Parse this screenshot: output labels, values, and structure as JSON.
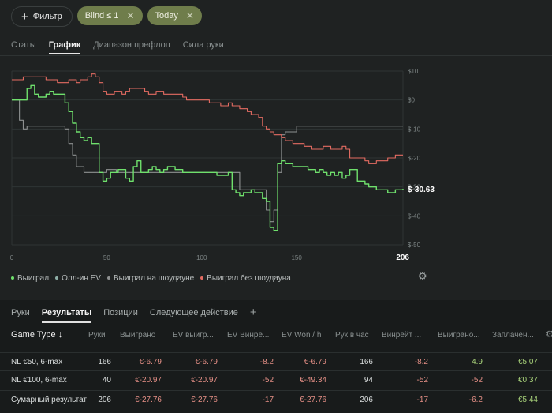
{
  "filters": {
    "add_label": "Фильтр",
    "chips": [
      {
        "label": "Blind ≤ 1"
      },
      {
        "label": "Today"
      }
    ]
  },
  "tabs": [
    "Статы",
    "График",
    "Диапазон префлоп",
    "Сила руки"
  ],
  "active_tab": "График",
  "chart_data": {
    "type": "line",
    "x_ticks": [
      "0",
      "50",
      "100",
      "150",
      "206"
    ],
    "y_ticks": [
      "$10",
      "$0",
      "$-10",
      "$-20",
      "$-30",
      "$-40",
      "$-50"
    ],
    "xlim": [
      0,
      206
    ],
    "ylim": [
      -50,
      10
    ],
    "end_label": "$-30.63",
    "series": [
      {
        "name": "Выиграл",
        "color": "#6fe06c",
        "x": [
          0,
          2,
          4,
          6,
          8,
          10,
          12,
          14,
          16,
          18,
          20,
          22,
          24,
          26,
          28,
          30,
          32,
          34,
          36,
          38,
          40,
          42,
          44,
          46,
          48,
          50,
          52,
          54,
          56,
          58,
          60,
          62,
          64,
          66,
          68,
          70,
          72,
          74,
          76,
          78,
          80,
          82,
          84,
          86,
          88,
          90,
          92,
          94,
          96,
          98,
          100,
          102,
          104,
          106,
          108,
          110,
          112,
          114,
          116,
          118,
          120,
          122,
          124,
          126,
          128,
          130,
          132,
          134,
          136,
          138,
          140,
          142,
          144,
          146,
          148,
          150,
          152,
          154,
          156,
          158,
          160,
          162,
          164,
          166,
          168,
          170,
          172,
          174,
          176,
          178,
          180,
          182,
          184,
          186,
          188,
          190,
          192,
          194,
          196,
          198,
          200,
          202,
          204,
          206
        ],
        "y": [
          0,
          0,
          0,
          0,
          4,
          5,
          2,
          1,
          1,
          2,
          3,
          2,
          2,
          2,
          -1,
          -4,
          -8,
          -11,
          -13,
          -14,
          -13,
          -15,
          -15,
          -25,
          -28,
          -27,
          -25,
          -25,
          -24,
          -24,
          -27,
          -28,
          -23,
          -21,
          -25,
          -25,
          -24,
          -23,
          -24,
          -25,
          -24,
          -23,
          -23,
          -24,
          -24,
          -25,
          -25,
          -25,
          -25,
          -25,
          -25,
          -25,
          -25,
          -25,
          -26,
          -26,
          -26,
          -25,
          -31,
          -32,
          -33,
          -32,
          -32,
          -31,
          -32,
          -32,
          -34,
          -35,
          -44,
          -45,
          -22,
          -21,
          -22,
          -22,
          -23,
          -23,
          -23,
          -23,
          -24,
          -24,
          -25,
          -24,
          -25,
          -26,
          -25,
          -26,
          -25,
          -27,
          -26,
          -24,
          -24,
          -28,
          -28,
          -29,
          -30,
          -30,
          -31,
          -31,
          -31,
          -32,
          -32,
          -31,
          -31,
          -30.63
        ]
      },
      {
        "name": "Олл-ин EV",
        "color": "#8fb0a8",
        "x": [
          0,
          206
        ],
        "y": [
          0,
          -30.63
        ]
      },
      {
        "name": "Выиграл на шоудауне",
        "color": "#8e9191",
        "x": [
          0,
          1,
          2,
          3,
          4,
          6,
          8,
          10,
          12,
          14,
          16,
          18,
          20,
          22,
          24,
          26,
          28,
          30,
          32,
          34,
          36,
          38,
          40,
          42,
          44,
          46,
          48,
          50,
          55,
          60,
          65,
          70,
          75,
          80,
          85,
          90,
          95,
          100,
          105,
          110,
          115,
          120,
          125,
          128,
          130,
          132,
          134,
          136,
          138,
          140,
          142,
          144,
          146,
          148,
          150,
          155,
          160,
          165,
          170,
          175,
          180,
          185,
          190,
          195,
          200,
          206
        ],
        "y": [
          0,
          0,
          0,
          0,
          -7,
          -10,
          -9,
          -9,
          -9,
          -9,
          -9,
          -9,
          -9,
          -9,
          -9,
          -9,
          -10,
          -15,
          -19,
          -23,
          -23,
          -25,
          -25,
          -25,
          -25,
          -25,
          -25,
          -24,
          -25,
          -25,
          -25,
          -25,
          -25,
          -25,
          -25,
          -25,
          -25,
          -25,
          -25,
          -25,
          -25,
          -31,
          -31,
          -31,
          -31,
          -31,
          -38,
          -42,
          -38,
          -25,
          -12,
          -11,
          -11,
          -11,
          -9,
          -9,
          -9,
          -9,
          -9,
          -9,
          -9,
          -9,
          -9,
          -9,
          -9,
          -9
        ]
      },
      {
        "name": "Выиграл без шоудауна",
        "color": "#e56c62",
        "x": [
          0,
          2,
          4,
          6,
          8,
          10,
          12,
          14,
          16,
          18,
          20,
          22,
          24,
          26,
          28,
          30,
          32,
          34,
          36,
          38,
          40,
          42,
          44,
          46,
          48,
          50,
          52,
          54,
          56,
          58,
          60,
          62,
          64,
          66,
          68,
          70,
          72,
          74,
          76,
          78,
          80,
          82,
          84,
          86,
          88,
          90,
          92,
          94,
          96,
          98,
          100,
          102,
          104,
          106,
          108,
          110,
          112,
          114,
          116,
          118,
          120,
          122,
          124,
          126,
          128,
          130,
          132,
          134,
          136,
          138,
          140,
          142,
          144,
          146,
          148,
          150,
          152,
          154,
          156,
          158,
          160,
          162,
          164,
          166,
          168,
          170,
          172,
          174,
          176,
          178,
          180,
          182,
          184,
          186,
          188,
          190,
          192,
          194,
          196,
          198,
          200,
          202,
          204,
          206
        ],
        "y": [
          7,
          7,
          7,
          8,
          8,
          8,
          8,
          8,
          8,
          7,
          7,
          7,
          6,
          6,
          6,
          7,
          7,
          6,
          7,
          7,
          8,
          9,
          8,
          6,
          3,
          2,
          2,
          3,
          3,
          2,
          3,
          4,
          4,
          4,
          4,
          3,
          2,
          2,
          3,
          3,
          2,
          2,
          2,
          2,
          2,
          1,
          0,
          0,
          0,
          0,
          0,
          0,
          -1,
          -1,
          -1,
          -2,
          -2,
          -1,
          -2,
          -2,
          -3,
          -3,
          -4,
          -5,
          -5,
          -6,
          -9,
          -10,
          -11,
          -12,
          -12,
          -13,
          -14,
          -14,
          -15,
          -15,
          -15,
          -16,
          -16,
          -17,
          -17,
          -17,
          -16,
          -16,
          -17,
          -17,
          -17,
          -16,
          -17,
          -20,
          -20,
          -20,
          -20,
          -21,
          -22,
          -22,
          -21,
          -21,
          -21,
          -20,
          -20,
          -19,
          -19,
          -19
        ]
      }
    ]
  },
  "legend": [
    {
      "label": "Выиграл",
      "color": "#6fe06c"
    },
    {
      "label": "Олл-ин EV",
      "color": "#8fb0a8"
    },
    {
      "label": "Выиграл на шоудауне",
      "color": "#8e9191"
    },
    {
      "label": "Выиграл без шоудауна",
      "color": "#e56c62"
    }
  ],
  "bottom_tabs": [
    "Руки",
    "Результаты",
    "Позиции",
    "Следующее действие"
  ],
  "bottom_active_tab": "Результаты",
  "table": {
    "columns": [
      "Game Type ↓",
      "Руки",
      "Выиграно",
      "EV выигр...",
      "EV Винре...",
      "EV Won / h",
      "Рук в час",
      "Винрейт ...",
      "Выиграно...",
      "Заплачен..."
    ],
    "rows": [
      {
        "cells": [
          "NL €50, 6-max",
          "166",
          "€-6.79",
          "€-6.79",
          "-8.2",
          "€-6.79",
          "166",
          "-8.2",
          "4.9",
          "€5.07"
        ]
      },
      {
        "cells": [
          "NL €100, 6-max",
          "40",
          "€-20.97",
          "€-20.97",
          "-52",
          "€-49.34",
          "94",
          "-52",
          "-52",
          "€0.37"
        ]
      },
      {
        "cells": [
          "Сумарный результат",
          "206",
          "€-27.76",
          "€-27.76",
          "-17",
          "€-27.76",
          "206",
          "-17",
          "-6.2",
          "€5.44"
        ]
      }
    ]
  }
}
